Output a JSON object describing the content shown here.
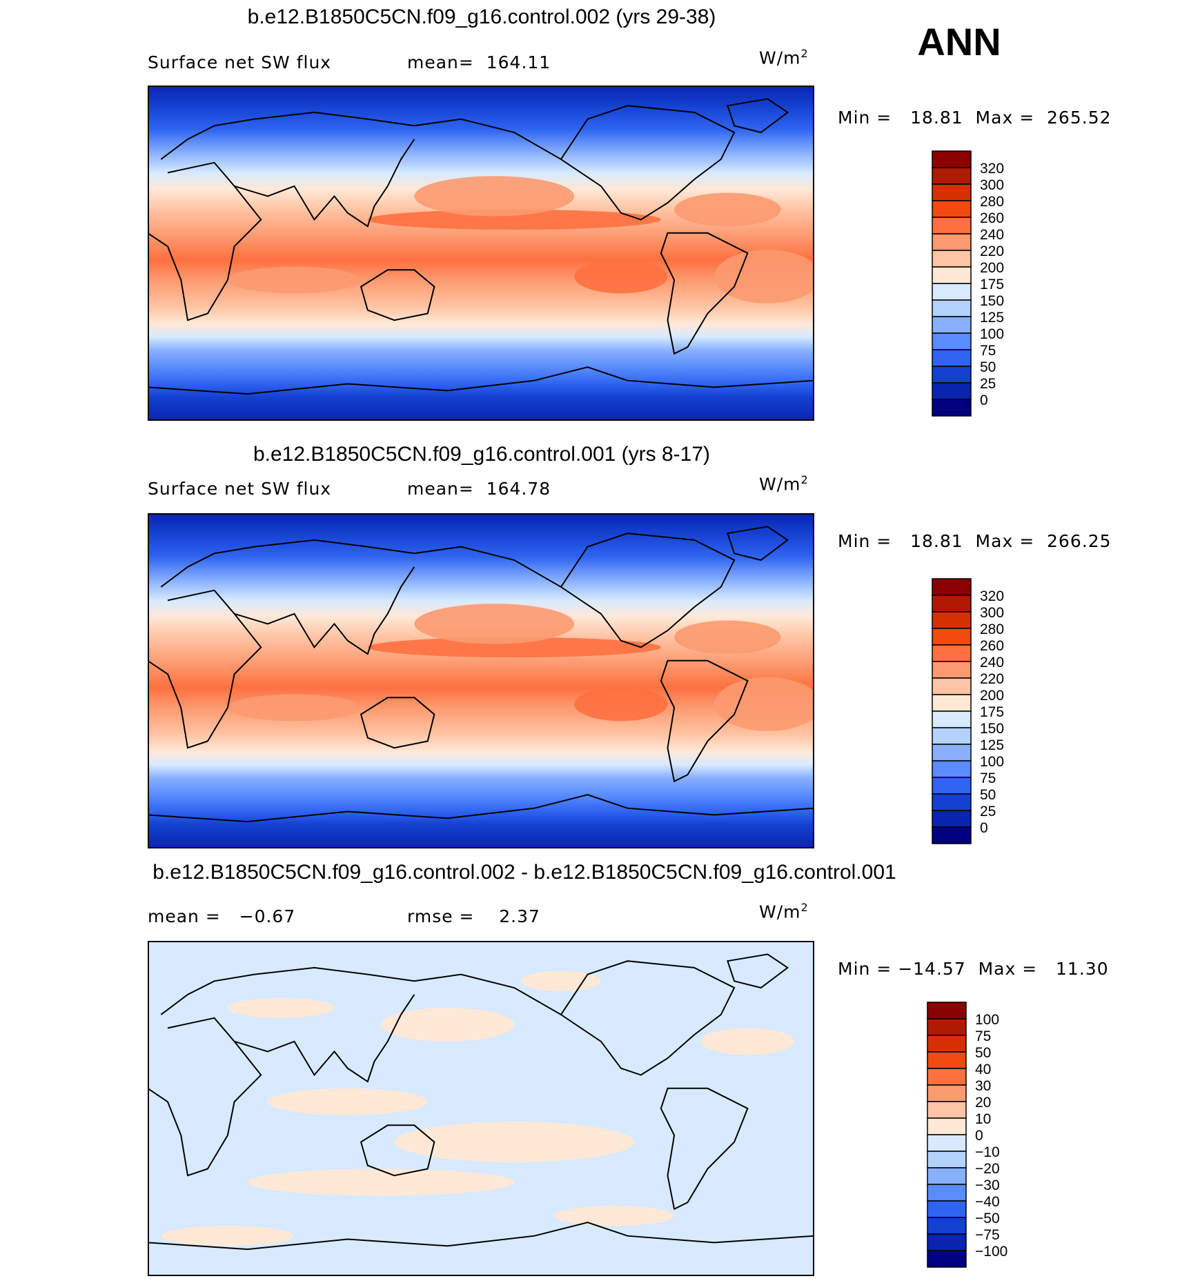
{
  "page": {
    "season": "ANN"
  },
  "chart_data": [
    {
      "type": "heatmap",
      "title": "b.e12.B1850C5CN.f09_g16.control.002 (yrs 29-38)",
      "left_label": "Surface net SW flux",
      "mean_label": "mean=  164.11",
      "units": "W/m",
      "units_exp": "2",
      "min_max": "Min =   18.81  Max =  265.52",
      "colorbar_levels": [
        "320",
        "300",
        "280",
        "260",
        "240",
        "220",
        "200",
        "175",
        "150",
        "125",
        "100",
        "75",
        "50",
        "25",
        "0"
      ],
      "colorbar_colors": [
        "#8b0000",
        "#b01a00",
        "#d73000",
        "#f04a10",
        "#ff7040",
        "#fc9a70",
        "#ffc4a4",
        "#ffe8d6",
        "#d7eaff",
        "#b4d2ff",
        "#88b0ff",
        "#5a8cff",
        "#2e64f0",
        "#1440d0",
        "#0a24b0",
        "#000080"
      ]
    },
    {
      "type": "heatmap",
      "title": "b.e12.B1850C5CN.f09_g16.control.001 (yrs 8-17)",
      "left_label": "Surface net SW flux",
      "mean_label": "mean=  164.78",
      "units": "W/m",
      "units_exp": "2",
      "min_max": "Min =   18.81  Max =  266.25",
      "colorbar_levels": [
        "320",
        "300",
        "280",
        "260",
        "240",
        "220",
        "200",
        "175",
        "150",
        "125",
        "100",
        "75",
        "50",
        "25",
        "0"
      ],
      "colorbar_colors": [
        "#8b0000",
        "#b01a00",
        "#d73000",
        "#f04a10",
        "#ff7040",
        "#fc9a70",
        "#ffc4a4",
        "#ffe8d6",
        "#d7eaff",
        "#b4d2ff",
        "#88b0ff",
        "#5a8cff",
        "#2e64f0",
        "#1440d0",
        "#0a24b0",
        "#000080"
      ]
    },
    {
      "type": "heatmap",
      "title": "b.e12.B1850C5CN.f09_g16.control.002 - b.e12.B1850C5CN.f09_g16.control.001",
      "left_label": "mean =   −0.67",
      "mean_label": "rmse =    2.37",
      "units": "W/m",
      "units_exp": "2",
      "min_max": "Min = −14.57  Max =   11.30",
      "colorbar_levels": [
        "100",
        "75",
        "50",
        "40",
        "30",
        "20",
        "10",
        "0",
        "−10",
        "−20",
        "−30",
        "−40",
        "−50",
        "−75",
        "−100"
      ],
      "colorbar_colors": [
        "#8b0000",
        "#b01a00",
        "#d73000",
        "#f04a10",
        "#ff7040",
        "#fc9a70",
        "#ffc4a4",
        "#ffe8d6",
        "#d7eaff",
        "#b4d2ff",
        "#88b0ff",
        "#5a8cff",
        "#2e64f0",
        "#1440d0",
        "#0a24b0",
        "#000080"
      ]
    }
  ]
}
